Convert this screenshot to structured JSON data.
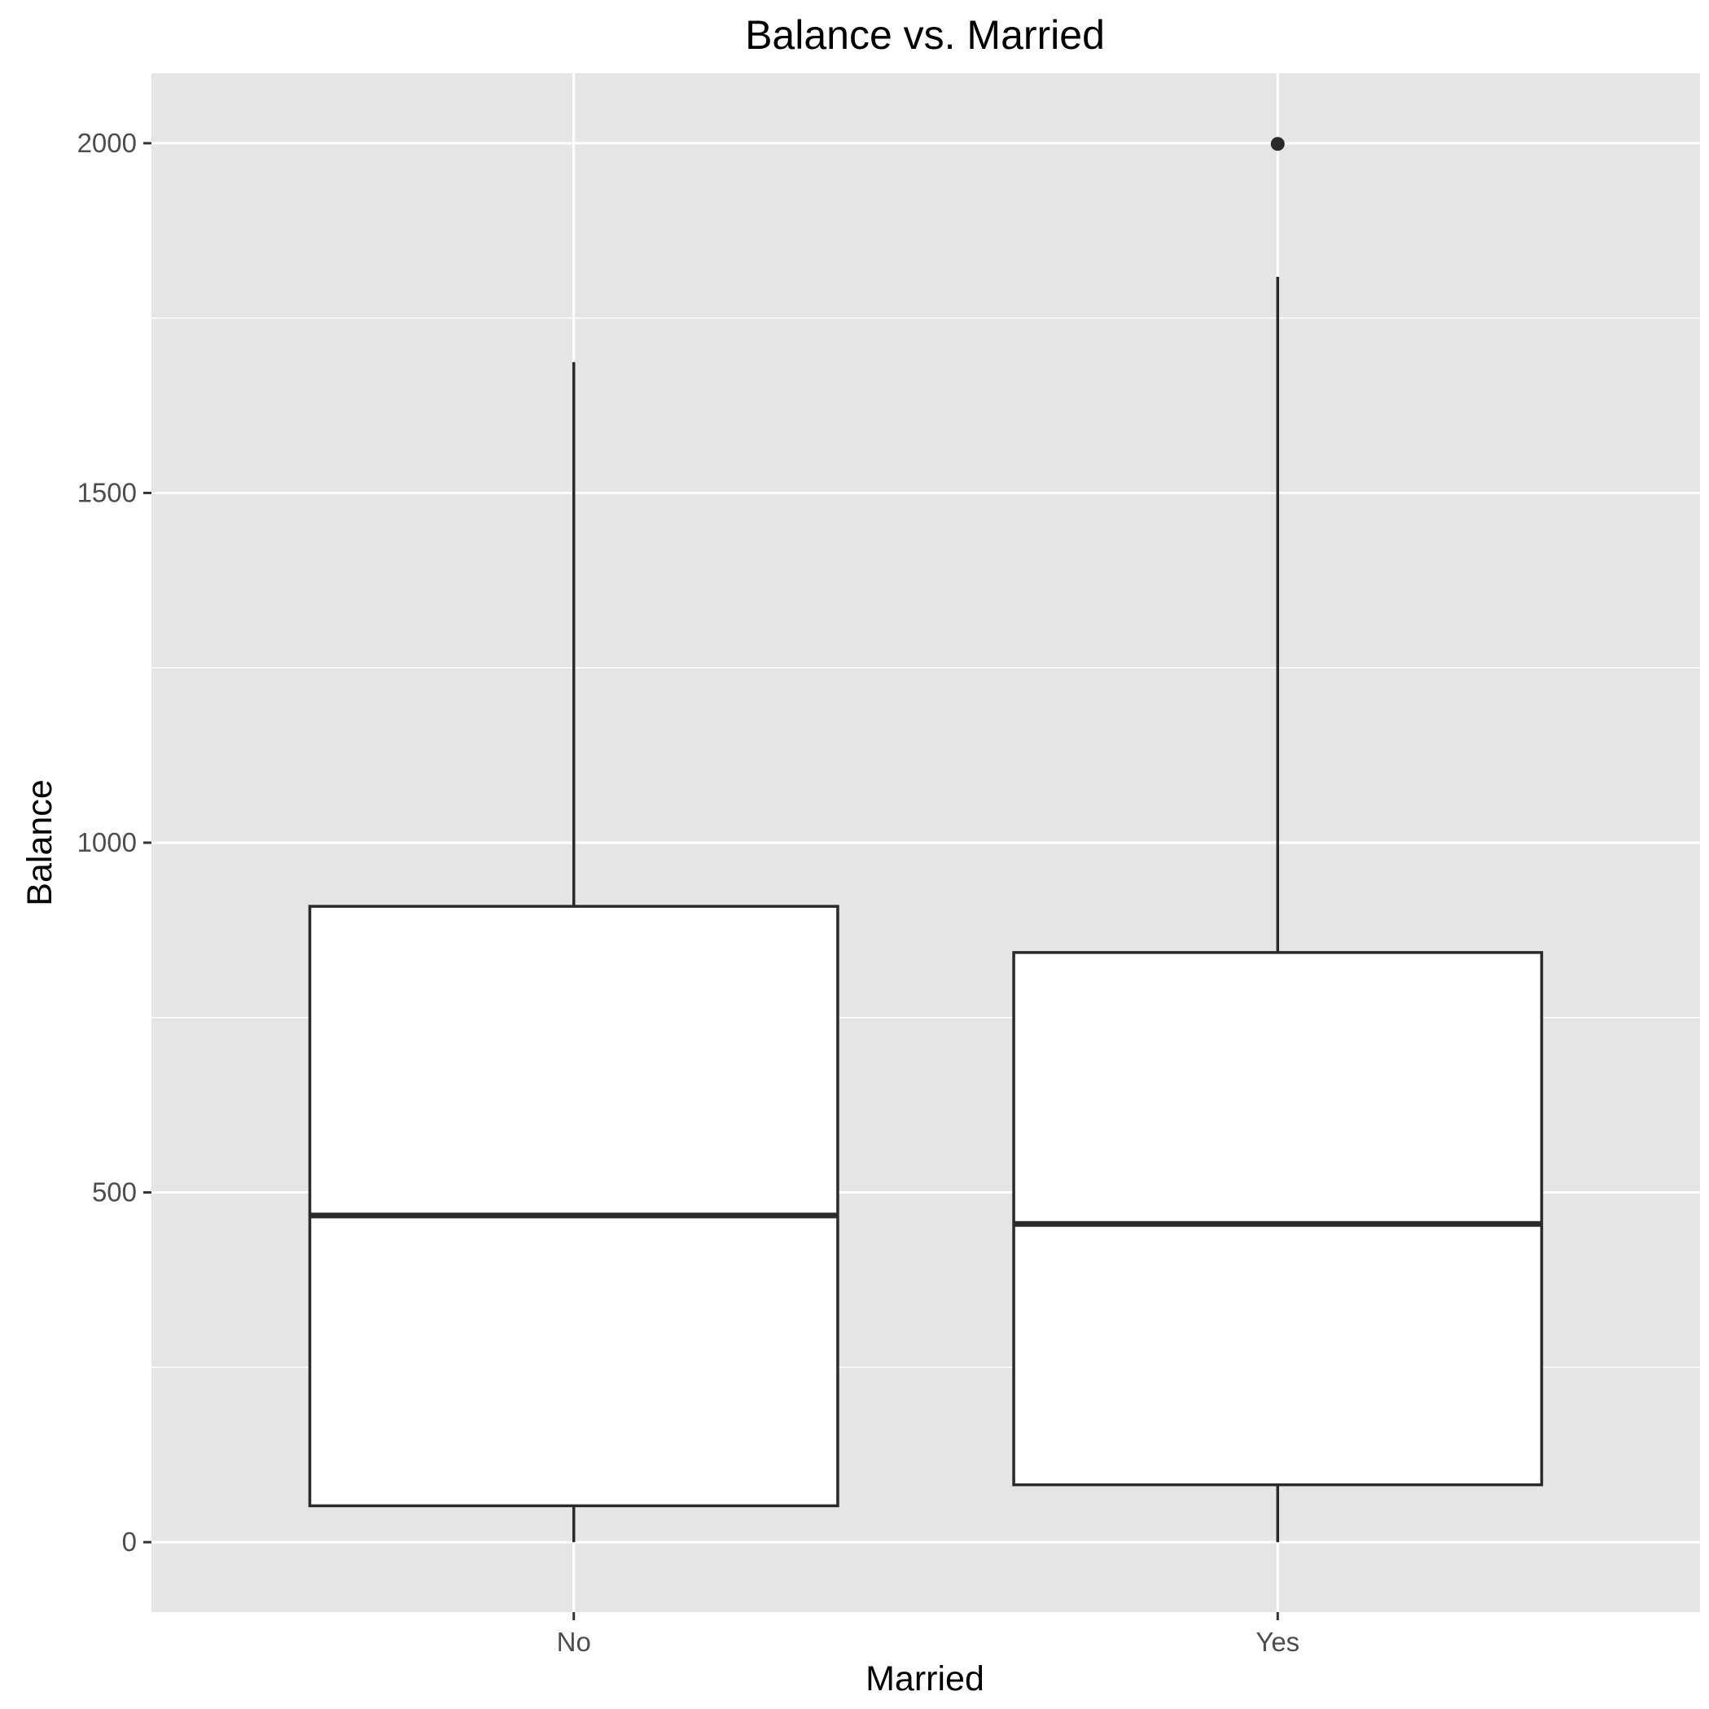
{
  "chart_data": {
    "type": "boxplot",
    "title": "Balance vs. Married",
    "xlabel": "Married",
    "ylabel": "Balance",
    "categories": [
      "No",
      "Yes"
    ],
    "ylim": [
      -100,
      2100
    ],
    "yticks": [
      0,
      500,
      1000,
      1500,
      2000
    ],
    "grid": true,
    "boxes": [
      {
        "category": "No",
        "lower_whisker": 0,
        "q1": 52,
        "median": 467,
        "q3": 909,
        "upper_whisker": 1687,
        "outliers": []
      },
      {
        "category": "Yes",
        "lower_whisker": 0,
        "q1": 82,
        "median": 455,
        "q3": 843,
        "upper_whisker": 1809,
        "outliers": [
          1999
        ]
      }
    ]
  },
  "colors": {
    "panel_background": "#e5e5e5",
    "grid": "#ffffff",
    "box_fill": "#ffffff",
    "box_stroke": "#2a2a2a",
    "tick_text": "#4d4d4d",
    "tick_mark": "#333333"
  }
}
